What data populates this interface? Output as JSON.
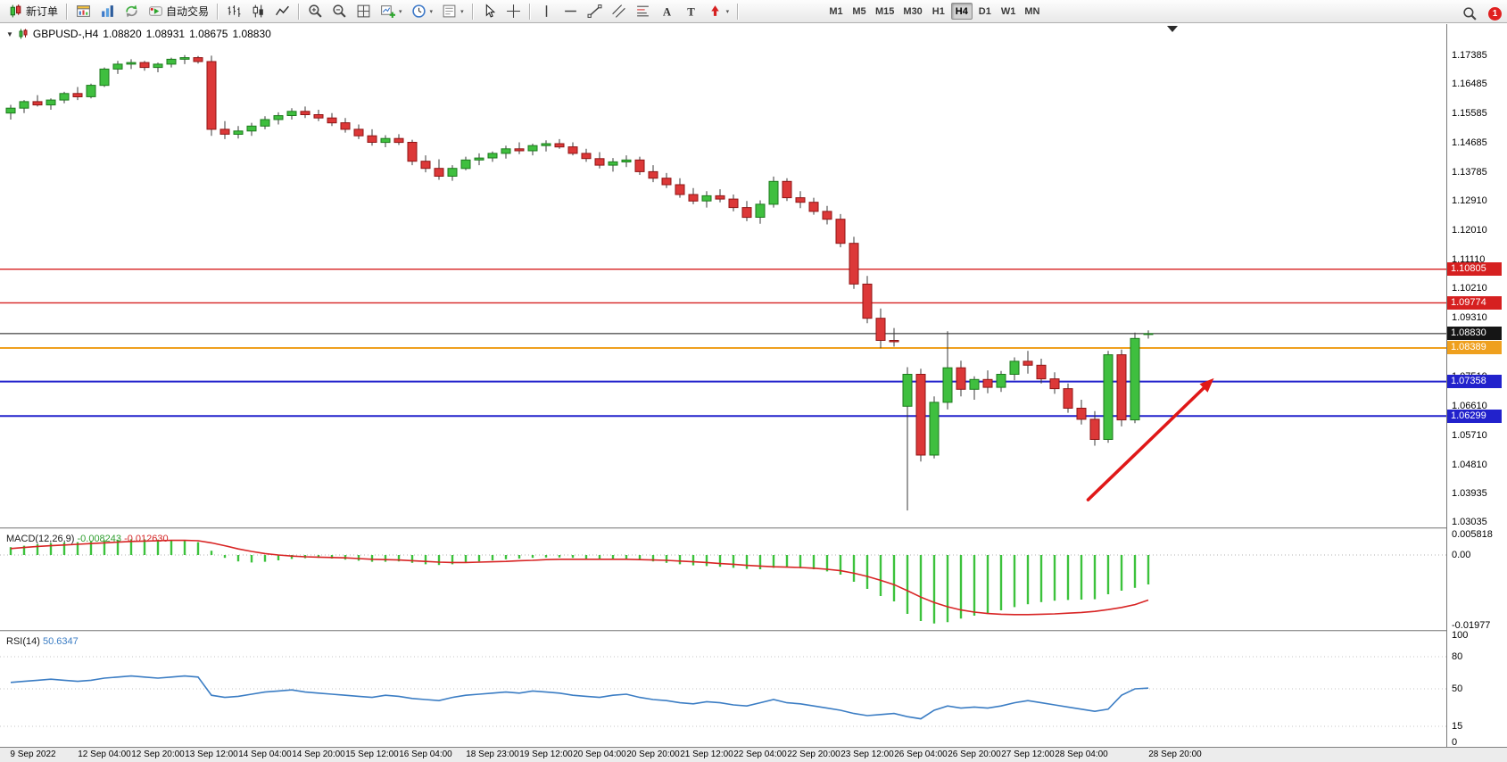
{
  "toolbar": {
    "new_order": "新订单",
    "auto_trading": "自动交易",
    "timeframes": [
      "M1",
      "M5",
      "M15",
      "M30",
      "H1",
      "H4",
      "D1",
      "W1",
      "MN"
    ],
    "active_timeframe": "H4",
    "notification_count": "1"
  },
  "chart": {
    "symbol": "GBPUSD-,H4",
    "open": "1.08820",
    "high": "1.08931",
    "low": "1.08675",
    "close": "1.08830"
  },
  "macd_panel": {
    "title": "MACD(12,26,9)",
    "main_value": "-0.008243",
    "signal_value": "-0.012630"
  },
  "rsi_panel": {
    "title": "RSI(14)",
    "value": "50.6347"
  },
  "chart_data": {
    "type": "candlestick",
    "symbol": "GBPUSD-",
    "timeframe": "H4",
    "price_axis": {
      "min": 1.0291,
      "max": 1.1833,
      "ticks": [
        1.17385,
        1.16485,
        1.15585,
        1.14685,
        1.13785,
        1.1291,
        1.1201,
        1.1111,
        1.1021,
        1.0931,
        1.0841,
        1.0751,
        1.0661,
        1.0571,
        1.0481,
        1.03935,
        1.03035
      ]
    },
    "colors": {
      "up_candle": "#3fbf3f",
      "up_border": "#1c7a1c",
      "down_candle": "#dc3838",
      "down_border": "#8f1515",
      "wick": "#3a3a3a",
      "macd_histogram": "#3cc23c",
      "macd_signal": "#d82424",
      "rsi_line": "#3b7dc4",
      "arrow": "#e01818"
    },
    "hlines": [
      {
        "price": 1.10805,
        "label": "1.10805",
        "color": "#d62020",
        "width": 1.4
      },
      {
        "price": 1.09774,
        "label": "1.09774",
        "color": "#d62020",
        "width": 1.4
      },
      {
        "price": 1.0883,
        "label": "1.08830",
        "color": "#151515",
        "width": 1
      },
      {
        "price": 1.08389,
        "label": "1.08389",
        "color": "#efa01e",
        "width": 2
      },
      {
        "price": 1.07358,
        "label": "1.07358",
        "color": "#2222cc",
        "width": 2
      },
      {
        "price": 1.06299,
        "label": "1.06299",
        "color": "#2222cc",
        "width": 2
      }
    ],
    "arrow": {
      "from_index": 80.5,
      "from_price": 1.0373,
      "to_index": 89.9,
      "to_price": 1.0746
    },
    "shift_marker_index": 86.8,
    "candles": [
      [
        1.156,
        1.1585,
        1.154,
        1.1575
      ],
      [
        1.1575,
        1.16,
        1.156,
        1.1595
      ],
      [
        1.1595,
        1.1615,
        1.158,
        1.1585
      ],
      [
        1.1585,
        1.1605,
        1.157,
        1.16
      ],
      [
        1.16,
        1.1625,
        1.159,
        1.162
      ],
      [
        1.162,
        1.164,
        1.16,
        1.161
      ],
      [
        1.161,
        1.165,
        1.1605,
        1.1645
      ],
      [
        1.1645,
        1.17,
        1.164,
        1.1695
      ],
      [
        1.1695,
        1.172,
        1.168,
        1.171
      ],
      [
        1.171,
        1.1725,
        1.1695,
        1.1715
      ],
      [
        1.1715,
        1.172,
        1.169,
        1.17
      ],
      [
        1.17,
        1.1715,
        1.1685,
        1.171
      ],
      [
        1.171,
        1.173,
        1.17,
        1.1725
      ],
      [
        1.1725,
        1.1738,
        1.171,
        1.173
      ],
      [
        1.173,
        1.1735,
        1.1712,
        1.1718
      ],
      [
        1.1718,
        1.1736,
        1.149,
        1.151
      ],
      [
        1.151,
        1.1535,
        1.148,
        1.1495
      ],
      [
        1.1495,
        1.152,
        1.1482,
        1.1505
      ],
      [
        1.1505,
        1.153,
        1.149,
        1.152
      ],
      [
        1.152,
        1.155,
        1.151,
        1.154
      ],
      [
        1.154,
        1.1562,
        1.1525,
        1.1552
      ],
      [
        1.1552,
        1.1575,
        1.154,
        1.1565
      ],
      [
        1.1565,
        1.158,
        1.1545,
        1.1555
      ],
      [
        1.1555,
        1.157,
        1.1535,
        1.1545
      ],
      [
        1.1545,
        1.156,
        1.152,
        1.153
      ],
      [
        1.153,
        1.1545,
        1.15,
        1.151
      ],
      [
        1.151,
        1.1525,
        1.148,
        1.149
      ],
      [
        1.149,
        1.151,
        1.146,
        1.147
      ],
      [
        1.147,
        1.1492,
        1.1455,
        1.1482
      ],
      [
        1.1482,
        1.1495,
        1.1462,
        1.147
      ],
      [
        1.147,
        1.1478,
        1.14,
        1.1412
      ],
      [
        1.1412,
        1.143,
        1.1378,
        1.139
      ],
      [
        1.139,
        1.1418,
        1.1355,
        1.1366
      ],
      [
        1.1366,
        1.14,
        1.1352,
        1.139
      ],
      [
        1.139,
        1.1426,
        1.1384,
        1.1416
      ],
      [
        1.1416,
        1.1436,
        1.14,
        1.1422
      ],
      [
        1.1422,
        1.1442,
        1.141,
        1.1436
      ],
      [
        1.1436,
        1.146,
        1.142,
        1.145
      ],
      [
        1.145,
        1.147,
        1.1434,
        1.1444
      ],
      [
        1.1444,
        1.1466,
        1.143,
        1.146
      ],
      [
        1.146,
        1.1476,
        1.1442,
        1.1466
      ],
      [
        1.1466,
        1.148,
        1.145,
        1.1456
      ],
      [
        1.1456,
        1.147,
        1.143,
        1.1436
      ],
      [
        1.1436,
        1.145,
        1.141,
        1.142
      ],
      [
        1.142,
        1.144,
        1.139,
        1.14
      ],
      [
        1.14,
        1.1422,
        1.138,
        1.141
      ],
      [
        1.141,
        1.143,
        1.1394,
        1.1416
      ],
      [
        1.1416,
        1.1426,
        1.137,
        1.138
      ],
      [
        1.138,
        1.14,
        1.1348,
        1.136
      ],
      [
        1.136,
        1.1376,
        1.133,
        1.134
      ],
      [
        1.134,
        1.136,
        1.13,
        1.131
      ],
      [
        1.131,
        1.133,
        1.128,
        1.129
      ],
      [
        1.129,
        1.132,
        1.127,
        1.1306
      ],
      [
        1.1306,
        1.1326,
        1.1286,
        1.1296
      ],
      [
        1.1296,
        1.131,
        1.1258,
        1.127
      ],
      [
        1.127,
        1.129,
        1.1228,
        1.124
      ],
      [
        1.124,
        1.1292,
        1.122,
        1.128
      ],
      [
        1.128,
        1.1365,
        1.127,
        1.135
      ],
      [
        1.135,
        1.136,
        1.129,
        1.13
      ],
      [
        1.13,
        1.132,
        1.1268,
        1.1286
      ],
      [
        1.1286,
        1.13,
        1.1248,
        1.1258
      ],
      [
        1.1258,
        1.1275,
        1.1218,
        1.1234
      ],
      [
        1.1234,
        1.125,
        1.1148,
        1.116
      ],
      [
        1.116,
        1.118,
        1.102,
        1.1035
      ],
      [
        1.1035,
        1.106,
        1.0915,
        1.093
      ],
      [
        1.093,
        1.096,
        1.0838,
        1.0862
      ],
      [
        1.0862,
        1.09,
        1.0843,
        1.0858
      ],
      [
        1.066,
        1.078,
        1.034,
        1.0758
      ],
      [
        1.0758,
        1.0775,
        1.049,
        1.051
      ],
      [
        1.051,
        1.069,
        1.05,
        1.0672
      ],
      [
        1.0672,
        1.089,
        1.065,
        1.0778
      ],
      [
        1.0778,
        1.08,
        1.069,
        1.0712
      ],
      [
        1.0712,
        1.0752,
        1.068,
        1.0742
      ],
      [
        1.0742,
        1.077,
        1.07,
        1.0718
      ],
      [
        1.0718,
        1.0768,
        1.0704,
        1.0758
      ],
      [
        1.0758,
        1.081,
        1.074,
        1.0798
      ],
      [
        1.0798,
        1.083,
        1.076,
        1.0786
      ],
      [
        1.0786,
        1.0806,
        1.073,
        1.0744
      ],
      [
        1.0744,
        1.0764,
        1.0698,
        1.0714
      ],
      [
        1.0714,
        1.073,
        1.064,
        1.0654
      ],
      [
        1.0654,
        1.068,
        1.0604,
        1.062
      ],
      [
        1.062,
        1.0645,
        1.0539,
        1.0558
      ],
      [
        1.0558,
        1.083,
        1.0548,
        1.0818
      ],
      [
        1.0818,
        1.0834,
        1.0598,
        1.0618
      ],
      [
        1.0618,
        1.0886,
        1.0608,
        1.0868
      ],
      [
        1.0882,
        1.08931,
        1.08675,
        1.0883
      ]
    ],
    "time_labels": [
      {
        "text": "9 Sep 2022",
        "i": 0
      },
      {
        "text": "12 Sep 04:00",
        "i": 7
      },
      {
        "text": "12 Sep 20:00",
        "i": 11
      },
      {
        "text": "13 Sep 12:00",
        "i": 15
      },
      {
        "text": "14 Sep 04:00",
        "i": 19
      },
      {
        "text": "14 Sep 20:00",
        "i": 23
      },
      {
        "text": "15 Sep 12:00",
        "i": 27
      },
      {
        "text": "16 Sep 04:00",
        "i": 31
      },
      {
        "text": "18 Sep 23:00",
        "i": 36
      },
      {
        "text": "19 Sep 12:00",
        "i": 40
      },
      {
        "text": "20 Sep 04:00",
        "i": 44
      },
      {
        "text": "20 Sep 20:00",
        "i": 48
      },
      {
        "text": "21 Sep 12:00",
        "i": 52
      },
      {
        "text": "22 Sep 04:00",
        "i": 56
      },
      {
        "text": "22 Sep 20:00",
        "i": 60
      },
      {
        "text": "23 Sep 12:00",
        "i": 64
      },
      {
        "text": "26 Sep 04:00",
        "i": 68
      },
      {
        "text": "26 Sep 20:00",
        "i": 72
      },
      {
        "text": "27 Sep 12:00",
        "i": 76
      },
      {
        "text": "28 Sep 04:00",
        "i": 80
      },
      {
        "text": "28 Sep 20:00",
        "i": 87
      }
    ],
    "macd": {
      "ylim": [
        -0.0205,
        0.0065
      ],
      "axis_labels": [
        {
          "v": 0.005818,
          "text": "0.005818"
        },
        {
          "v": 0,
          "text": "0.00"
        },
        {
          "v": -0.01977,
          "text": "-0.01977"
        }
      ],
      "histogram": [
        0.0022,
        0.0026,
        0.003,
        0.0033,
        0.0035,
        0.0036,
        0.0038,
        0.0041,
        0.0043,
        0.0044,
        0.0044,
        0.0043,
        0.0042,
        0.004,
        0.0036,
        0.0012,
        -0.0008,
        -0.0018,
        -0.0021,
        -0.0019,
        -0.0015,
        -0.0011,
        -0.0009,
        -0.0008,
        -0.001,
        -0.0013,
        -0.0016,
        -0.0019,
        -0.0019,
        -0.0018,
        -0.0022,
        -0.0026,
        -0.0028,
        -0.0026,
        -0.0022,
        -0.0018,
        -0.0015,
        -0.0012,
        -0.001,
        -0.0008,
        -0.0007,
        -0.0007,
        -0.0008,
        -0.001,
        -0.0012,
        -0.0013,
        -0.0013,
        -0.0015,
        -0.0018,
        -0.0022,
        -0.0026,
        -0.0029,
        -0.0031,
        -0.0033,
        -0.0036,
        -0.0039,
        -0.004,
        -0.0036,
        -0.0035,
        -0.0037,
        -0.004,
        -0.0046,
        -0.0055,
        -0.0075,
        -0.0095,
        -0.0115,
        -0.013,
        -0.0165,
        -0.0185,
        -0.0192,
        -0.0188,
        -0.0178,
        -0.017,
        -0.0163,
        -0.0155,
        -0.0146,
        -0.0138,
        -0.0132,
        -0.0128,
        -0.0126,
        -0.0125,
        -0.0124,
        -0.011,
        -0.01,
        -0.0092,
        -0.008243
      ],
      "signal": [
        0.0018,
        0.0021,
        0.0024,
        0.0026,
        0.0028,
        0.003,
        0.0032,
        0.0034,
        0.0036,
        0.0038,
        0.0039,
        0.004,
        0.0041,
        0.0041,
        0.004,
        0.0034,
        0.0026,
        0.0017,
        0.001,
        0.0004,
        0,
        -0.0003,
        -0.0005,
        -0.0006,
        -0.0007,
        -0.0008,
        -0.001,
        -0.0012,
        -0.0013,
        -0.0014,
        -0.0016,
        -0.0018,
        -0.002,
        -0.0021,
        -0.0021,
        -0.002,
        -0.0019,
        -0.0018,
        -0.0016,
        -0.0015,
        -0.0013,
        -0.0012,
        -0.0012,
        -0.0012,
        -0.0012,
        -0.0012,
        -0.0012,
        -0.0013,
        -0.0014,
        -0.0015,
        -0.0017,
        -0.0019,
        -0.0021,
        -0.0024,
        -0.0026,
        -0.0029,
        -0.0031,
        -0.0033,
        -0.0034,
        -0.0035,
        -0.0037,
        -0.004,
        -0.0044,
        -0.0051,
        -0.006,
        -0.0071,
        -0.0083,
        -0.01,
        -0.0118,
        -0.0133,
        -0.0145,
        -0.0154,
        -0.016,
        -0.0164,
        -0.0166,
        -0.0167,
        -0.0167,
        -0.0166,
        -0.0165,
        -0.0163,
        -0.0161,
        -0.0158,
        -0.0153,
        -0.0147,
        -0.0139,
        -0.01263
      ]
    },
    "rsi": {
      "ylim": [
        0,
        100
      ],
      "levels": [
        80,
        50,
        15
      ],
      "axis_labels": [
        {
          "v": 100,
          "text": "100"
        },
        {
          "v": 80,
          "text": "80"
        },
        {
          "v": 50,
          "text": "50"
        },
        {
          "v": 15,
          "text": "15"
        },
        {
          "v": 0,
          "text": "0"
        }
      ],
      "values": [
        56,
        57,
        58,
        59,
        58,
        57,
        58,
        60,
        61,
        62,
        61,
        60,
        61,
        62,
        61,
        44,
        42,
        43,
        45,
        47,
        48,
        49,
        47,
        46,
        45,
        44,
        43,
        42,
        44,
        43,
        41,
        40,
        39,
        42,
        44,
        45,
        46,
        47,
        46,
        48,
        47,
        46,
        44,
        43,
        42,
        44,
        45,
        42,
        40,
        39,
        37,
        36,
        38,
        37,
        35,
        34,
        37,
        40,
        37,
        36,
        34,
        32,
        30,
        27,
        25,
        26,
        27,
        24,
        22,
        30,
        34,
        32,
        33,
        32,
        34,
        37,
        39,
        37,
        35,
        33,
        31,
        29,
        31,
        44,
        50,
        50.63
      ]
    }
  }
}
